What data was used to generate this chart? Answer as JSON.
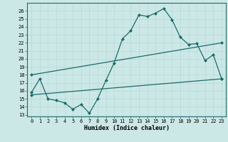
{
  "title": "",
  "xlabel": "Humidex (Indice chaleur)",
  "bg_color": "#cce8e6",
  "line_color": "#1a6b6b",
  "grid_color": "#b8dbd9",
  "x_ticks": [
    0,
    1,
    2,
    3,
    4,
    5,
    6,
    7,
    8,
    9,
    10,
    11,
    12,
    13,
    14,
    15,
    16,
    17,
    18,
    19,
    20,
    21,
    22,
    23
  ],
  "y_ticks": [
    13,
    14,
    15,
    16,
    17,
    18,
    19,
    20,
    21,
    22,
    23,
    24,
    25,
    26
  ],
  "ylim": [
    12.8,
    27.0
  ],
  "xlim": [
    -0.5,
    23.5
  ],
  "curve1_x": [
    0,
    1,
    2,
    3,
    4,
    5,
    6,
    7,
    8,
    9,
    10,
    11,
    12,
    13,
    14,
    15,
    16,
    17,
    18,
    19,
    20,
    21,
    22,
    23
  ],
  "curve1_y": [
    15.8,
    17.5,
    15.0,
    14.8,
    14.5,
    13.7,
    14.3,
    13.2,
    15.0,
    17.3,
    19.5,
    22.5,
    23.5,
    25.5,
    25.3,
    25.7,
    26.3,
    24.9,
    22.7,
    21.8,
    21.9,
    19.8,
    20.5,
    17.5
  ],
  "curve2_x": [
    0,
    23
  ],
  "curve2_y": [
    18.0,
    22.0
  ],
  "curve3_x": [
    0,
    23
  ],
  "curve3_y": [
    15.5,
    17.5
  ],
  "markersize": 2.5,
  "linewidth": 0.9
}
